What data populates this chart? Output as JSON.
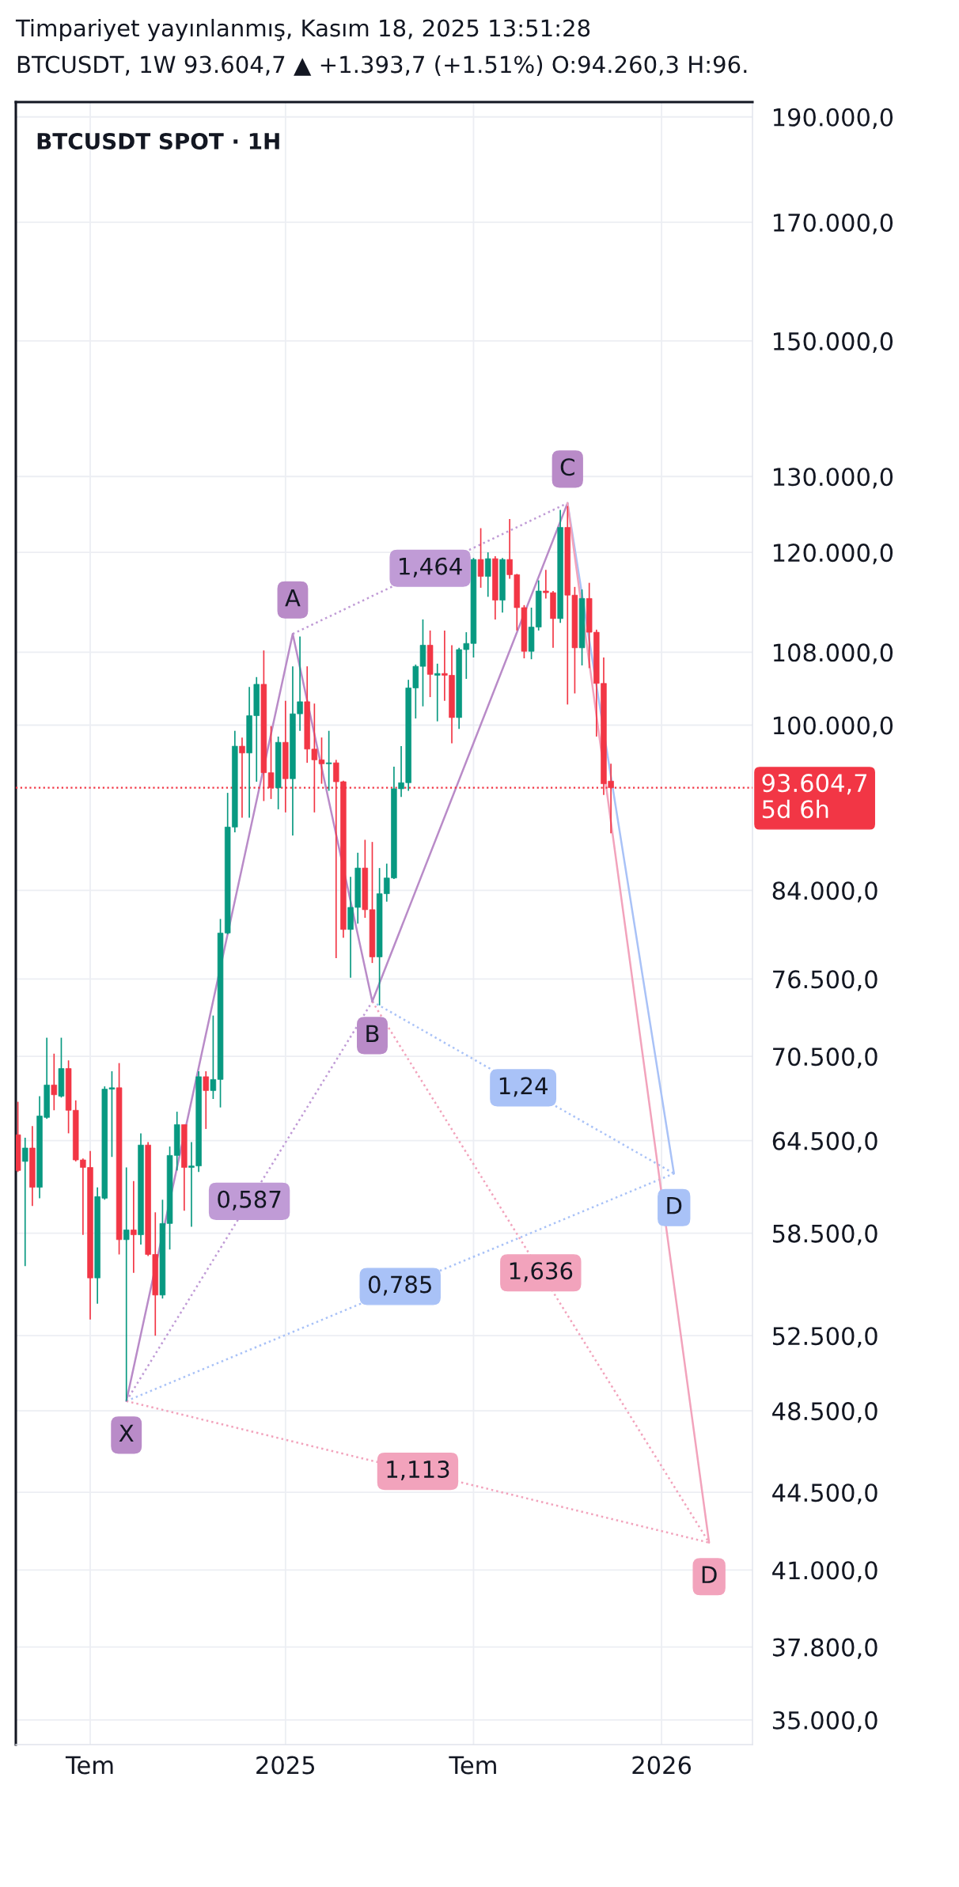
{
  "chart_data": {
    "type": "candlestick",
    "title": "Timpariyet yayınlanmış, Kasım 18, 2025 13:51:28",
    "subtitle": "BTCUSDT, 1W 93.604,7 ▲ +1.393,7 (+1.51%) O:94.260,3 H:96.",
    "x": [
      "2024-04-22",
      "2024-04-29",
      "2024-05-06",
      "2024-05-13",
      "2024-05-20",
      "2024-05-27",
      "2024-06-03",
      "2024-06-10",
      "2024-06-17",
      "2024-06-24",
      "2024-07-01",
      "2024-07-08",
      "2024-07-15",
      "2024-07-22",
      "2024-07-29",
      "2024-08-05",
      "2024-08-12",
      "2024-08-19",
      "2024-08-26",
      "2024-09-02",
      "2024-09-09",
      "2024-09-16",
      "2024-09-23",
      "2024-09-30",
      "2024-10-07",
      "2024-10-14",
      "2024-10-21",
      "2024-10-28",
      "2024-11-04",
      "2024-11-11",
      "2024-11-18",
      "2024-11-25",
      "2024-12-02",
      "2024-12-09",
      "2024-12-16",
      "2024-12-23",
      "2024-12-30",
      "2025-01-06",
      "2025-01-13",
      "2025-01-20",
      "2025-01-27",
      "2025-02-03",
      "2025-02-10",
      "2025-02-17",
      "2025-02-24",
      "2025-03-03",
      "2025-03-10",
      "2025-03-17",
      "2025-03-24",
      "2025-03-31",
      "2025-04-07",
      "2025-04-14",
      "2025-04-21",
      "2025-04-28",
      "2025-05-05",
      "2025-05-12",
      "2025-05-19",
      "2025-05-26",
      "2025-06-02",
      "2025-06-09",
      "2025-06-16",
      "2025-06-23",
      "2025-06-30",
      "2025-07-07",
      "2025-07-14",
      "2025-07-21",
      "2025-07-28",
      "2025-08-04",
      "2025-08-11",
      "2025-08-18",
      "2025-08-25",
      "2025-09-01",
      "2025-09-08",
      "2025-09-15",
      "2025-09-22",
      "2025-09-29",
      "2025-10-06",
      "2025-10-13",
      "2025-10-20",
      "2025-10-27",
      "2025-11-03",
      "2025-11-10",
      "2025-11-17"
    ],
    "ohlc": [
      [
        64900,
        67200,
        62400,
        62500
      ],
      [
        63100,
        64700,
        56500,
        64000
      ],
      [
        64000,
        65500,
        60200,
        61400
      ],
      [
        61400,
        67600,
        60700,
        66200
      ],
      [
        66100,
        71900,
        66000,
        68400
      ],
      [
        68400,
        70700,
        66600,
        67700
      ],
      [
        67600,
        71900,
        67500,
        69600
      ],
      [
        69600,
        70200,
        65000,
        66600
      ],
      [
        66600,
        67300,
        63100,
        63200
      ],
      [
        63200,
        63300,
        58400,
        62700
      ],
      [
        62700,
        63800,
        53400,
        55800
      ],
      [
        55800,
        61400,
        54300,
        60800
      ],
      [
        60700,
        68300,
        60600,
        68100
      ],
      [
        68100,
        69400,
        63400,
        68200
      ],
      [
        68200,
        70000,
        57200,
        58100
      ],
      [
        58100,
        62700,
        49000,
        58700
      ],
      [
        58700,
        61800,
        56100,
        58400
      ],
      [
        58400,
        65000,
        57800,
        64200
      ],
      [
        64200,
        64400,
        57100,
        57200
      ],
      [
        57200,
        59800,
        52500,
        54800
      ],
      [
        54800,
        60600,
        54600,
        59100
      ],
      [
        59100,
        64100,
        57500,
        63500
      ],
      [
        63500,
        66500,
        62500,
        65600
      ],
      [
        65600,
        65600,
        59900,
        62700
      ],
      [
        62700,
        64400,
        58900,
        62800
      ],
      [
        62800,
        69400,
        62400,
        69000
      ],
      [
        69000,
        69400,
        65300,
        68000
      ],
      [
        68000,
        73600,
        67400,
        68800
      ],
      [
        68800,
        81500,
        66800,
        80300
      ],
      [
        80300,
        93100,
        80200,
        89800
      ],
      [
        89800,
        99400,
        89300,
        97800
      ],
      [
        97800,
        98700,
        90700,
        97100
      ],
      [
        97100,
        104100,
        90700,
        101000
      ],
      [
        101000,
        105200,
        94200,
        104400
      ],
      [
        104400,
        108200,
        92300,
        95100
      ],
      [
        95100,
        99900,
        92500,
        93600
      ],
      [
        93600,
        98800,
        91500,
        98200
      ],
      [
        98200,
        102600,
        91200,
        94500
      ],
      [
        94500,
        106400,
        89000,
        101200
      ],
      [
        101200,
        109800,
        99400,
        102500
      ],
      [
        102500,
        106400,
        96100,
        97500
      ],
      [
        97500,
        102300,
        91200,
        96400
      ],
      [
        96400,
        98700,
        94000,
        96000
      ],
      [
        96000,
        99400,
        93300,
        96100
      ],
      [
        96100,
        96400,
        78200,
        94200
      ],
      [
        94200,
        94300,
        79900,
        80600
      ],
      [
        80600,
        85200,
        76600,
        82500
      ],
      [
        82500,
        87400,
        81100,
        86000
      ],
      [
        86000,
        88600,
        81600,
        82300
      ],
      [
        82300,
        88400,
        77800,
        78300
      ],
      [
        78300,
        86000,
        74400,
        83700
      ],
      [
        83700,
        86400,
        83000,
        85100
      ],
      [
        85100,
        95700,
        85000,
        93500
      ],
      [
        93500,
        97800,
        92700,
        94100
      ],
      [
        94100,
        104900,
        93300,
        104000
      ],
      [
        104000,
        106600,
        100700,
        106400
      ],
      [
        106400,
        111800,
        102000,
        108800
      ],
      [
        108800,
        110500,
        103000,
        105500
      ],
      [
        105400,
        106700,
        100400,
        105600
      ],
      [
        105600,
        110500,
        102600,
        105400
      ],
      [
        105400,
        108800,
        98100,
        100800
      ],
      [
        100800,
        108500,
        99600,
        108300
      ],
      [
        108300,
        110300,
        105000,
        109000
      ],
      [
        109000,
        119300,
        107400,
        119100
      ],
      [
        119100,
        123100,
        115600,
        117000
      ],
      [
        117000,
        120000,
        114500,
        119200
      ],
      [
        119200,
        119500,
        111800,
        114100
      ],
      [
        114100,
        119300,
        112600,
        119100
      ],
      [
        119100,
        124300,
        116700,
        117200
      ],
      [
        117200,
        117300,
        110500,
        113200
      ],
      [
        113200,
        113500,
        107300,
        108100
      ],
      [
        108100,
        113200,
        107200,
        110900
      ],
      [
        110900,
        116500,
        110500,
        115200
      ],
      [
        115200,
        117800,
        114300,
        115000
      ],
      [
        115000,
        115200,
        108500,
        111900
      ],
      [
        111900,
        125500,
        111400,
        123200
      ],
      [
        123200,
        126000,
        102200,
        114700
      ],
      [
        114700,
        115700,
        103400,
        108500
      ],
      [
        108500,
        115400,
        106500,
        114300
      ],
      [
        114300,
        116200,
        106200,
        110300
      ],
      [
        110300,
        110600,
        98800,
        104500
      ],
      [
        104500,
        107400,
        92900,
        94000
      ],
      [
        94260.3,
        96000,
        89200,
        93604.7
      ]
    ],
    "colors": [
      "#f23645",
      "#089981",
      "#f23645",
      "#089981",
      "#089981",
      "#f23645",
      "#089981",
      "#f23645",
      "#f23645",
      "#f23645",
      "#f23645",
      "#089981",
      "#089981",
      "#089981",
      "#f23645",
      "#089981",
      "#f23645",
      "#089981",
      "#f23645",
      "#f23645",
      "#089981",
      "#089981",
      "#089981",
      "#f23645",
      "#089981",
      "#089981",
      "#f23645",
      "#089981",
      "#089981",
      "#089981",
      "#089981",
      "#f23645",
      "#089981",
      "#089981",
      "#f23645",
      "#f23645",
      "#089981",
      "#f23645",
      "#089981",
      "#089981",
      "#f23645",
      "#f23645",
      "#f23645",
      "#089981",
      "#f23645",
      "#f23645",
      "#089981",
      "#089981",
      "#f23645",
      "#f23645",
      "#089981",
      "#089981",
      "#089981",
      "#089981",
      "#089981",
      "#089981",
      "#089981",
      "#f23645",
      "#089981",
      "#f23645",
      "#f23645",
      "#089981",
      "#089981",
      "#089981",
      "#f23645",
      "#089981",
      "#f23645",
      "#089981",
      "#f23645",
      "#f23645",
      "#f23645",
      "#089981",
      "#089981",
      "#f23645",
      "#f23645",
      "#089981",
      "#f23645",
      "#f23645",
      "#089981",
      "#f23645",
      "#f23645",
      "#f23645",
      "#f23645"
    ],
    "series": [
      {
        "type": "line",
        "line_style": "dotted",
        "color": "#c09bd6",
        "x": [
          "2024-08-05",
          "2025-03-31"
        ],
        "values": [
          49000,
          74700
        ]
      },
      {
        "type": "line",
        "line_style": "dotted",
        "color": "#c09bd6",
        "x": [
          "2025-01-13",
          "2025-10-06"
        ],
        "values": [
          110100,
          126400
        ]
      },
      {
        "type": "line",
        "line_style": "dotted",
        "color": "#a9c2f7",
        "x": [
          "2025-03-31",
          "2026-01-17"
        ],
        "values": [
          74700,
          62300
        ]
      },
      {
        "type": "line",
        "line_style": "dotted",
        "color": "#a9c2f7",
        "x": [
          "2024-08-05",
          "2026-01-17"
        ],
        "values": [
          49000,
          62300
        ]
      },
      {
        "type": "line",
        "line_style": "dotted",
        "color": "#f2a3bc",
        "x": [
          "2025-03-31",
          "2026-02-20"
        ],
        "values": [
          74700,
          42200
        ]
      },
      {
        "type": "line",
        "line_style": "dotted",
        "color": "#f2a3bc",
        "x": [
          "2024-08-05",
          "2026-02-20"
        ],
        "values": [
          49000,
          42200
        ]
      },
      {
        "type": "line",
        "line_style": "solid",
        "color": "#b98bc8",
        "x": [
          "2024-08-05",
          "2025-01-13",
          "2025-03-31",
          "2025-10-06"
        ],
        "values": [
          49000,
          110100,
          74700,
          126400
        ]
      },
      {
        "type": "line",
        "line_style": "solid",
        "color": "#a9c2f7",
        "x": [
          "2025-10-06",
          "2026-01-17"
        ],
        "values": [
          126400,
          62300
        ]
      },
      {
        "type": "line",
        "line_style": "solid",
        "color": "#f2a3bc",
        "x": [
          "2025-10-06",
          "2026-02-20"
        ],
        "values": [
          126400,
          42200
        ]
      }
    ],
    "xlim": [
      "2024-04-20",
      "2026-04-03"
    ],
    "xticks": [
      {
        "value": "2024-07-01",
        "label": "Tem"
      },
      {
        "value": "2025-01-06",
        "label": "2025"
      },
      {
        "value": "2025-07-07",
        "label": "Tem"
      },
      {
        "value": "2026-01-05",
        "label": "2026"
      }
    ],
    "ylim": [
      34100,
      193000
    ],
    "yticks": [
      {
        "value": 190000,
        "label": "190.000,0"
      },
      {
        "value": 170000,
        "label": "170.000,0"
      },
      {
        "value": 150000,
        "label": "150.000,0"
      },
      {
        "value": 130000,
        "label": "130.000,0"
      },
      {
        "value": 120000,
        "label": "120.000,0"
      },
      {
        "value": 108000,
        "label": "108.000,0"
      },
      {
        "value": 100000,
        "label": "100.000,0"
      },
      {
        "value": 84000,
        "label": "84.000,0"
      },
      {
        "value": 76500,
        "label": "76.500,0"
      },
      {
        "value": 70500,
        "label": "70.500,0"
      },
      {
        "value": 64500,
        "label": "64.500,0"
      },
      {
        "value": 58500,
        "label": "58.500,0"
      },
      {
        "value": 52500,
        "label": "52.500,0"
      },
      {
        "value": 48500,
        "label": "48.500,0"
      },
      {
        "value": 44500,
        "label": "44.500,0"
      },
      {
        "value": 41000,
        "label": "41.000,0"
      },
      {
        "value": 37800,
        "label": "37.800,0"
      },
      {
        "value": 35000,
        "label": "35.000,0"
      }
    ],
    "log": true,
    "grid": true,
    "ref_lines": [
      {
        "axis": "y",
        "value": 93604.7,
        "label": "93.604,7\n5d 6h",
        "color": "#f23645",
        "line_style": "dotted"
      }
    ],
    "annotations": [
      "BTCUSDT SPOT · 1H",
      {
        "text": "X",
        "x": "2024-08-05",
        "y": 49000
      },
      {
        "text": "A",
        "x": "2025-01-13",
        "y": 110100
      },
      {
        "text": "B",
        "x": "2025-03-31",
        "y": 74700
      },
      {
        "text": "C",
        "x": "2025-10-06",
        "y": 126400
      },
      {
        "text": "D",
        "x": "2026-01-17",
        "y": 62300
      },
      {
        "text": "D",
        "x": "2026-02-20",
        "y": 42200
      },
      {
        "text": "0,587",
        "x": "2024-12-02",
        "y": 60500
      },
      {
        "text": "1,464",
        "x": "2025-05-26",
        "y": 118000
      },
      {
        "text": "1,24",
        "x": "2025-08-24",
        "y": 68200
      },
      {
        "text": "0,785",
        "x": "2025-04-27",
        "y": 55300
      },
      {
        "text": "1,636",
        "x": "2025-09-10",
        "y": 56100
      },
      {
        "text": "1,113",
        "x": "2025-05-14",
        "y": 45500
      }
    ]
  }
}
